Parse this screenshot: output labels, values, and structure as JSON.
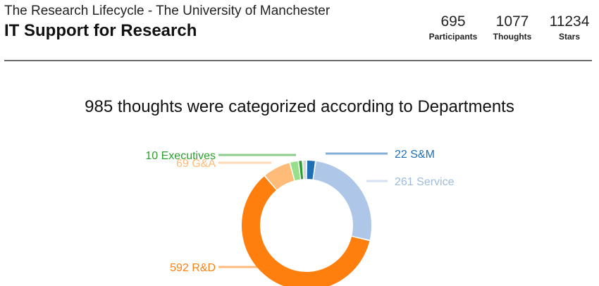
{
  "header": {
    "supertitle": "The Research Lifecycle - The University of Manchester",
    "title": "IT Support for Research",
    "stats": [
      {
        "value": "695",
        "label": "Participants"
      },
      {
        "value": "1077",
        "label": "Thoughts"
      },
      {
        "value": "11234",
        "label": "Stars"
      }
    ]
  },
  "chart_data": {
    "type": "pie",
    "title": "985 thoughts were categorized according to Departments",
    "donut": true,
    "slices": [
      {
        "label": "S&M",
        "value": 22,
        "color": "#1f6fb4",
        "callout": "22 S&M",
        "side": "right"
      },
      {
        "label": "Service",
        "value": 261,
        "color": "#aec7e8",
        "callout": "261 Service",
        "side": "right"
      },
      {
        "label": "R&D",
        "value": 592,
        "color": "#ff7f0e",
        "callout": "592 R&D",
        "side": "left"
      },
      {
        "label": "G&A",
        "value": 69,
        "color": "#ffbb78",
        "callout": "69 G&A",
        "side": "left"
      },
      {
        "label": "",
        "value": 21,
        "color": "#98df8a",
        "callout": "",
        "side": "left"
      },
      {
        "label": "Executives",
        "value": 10,
        "color": "#2ca02c",
        "callout": "10 Executives",
        "side": "left"
      },
      {
        "label": "",
        "value": 10,
        "color": "#d9d9d9",
        "callout": "",
        "side": "left"
      }
    ]
  }
}
